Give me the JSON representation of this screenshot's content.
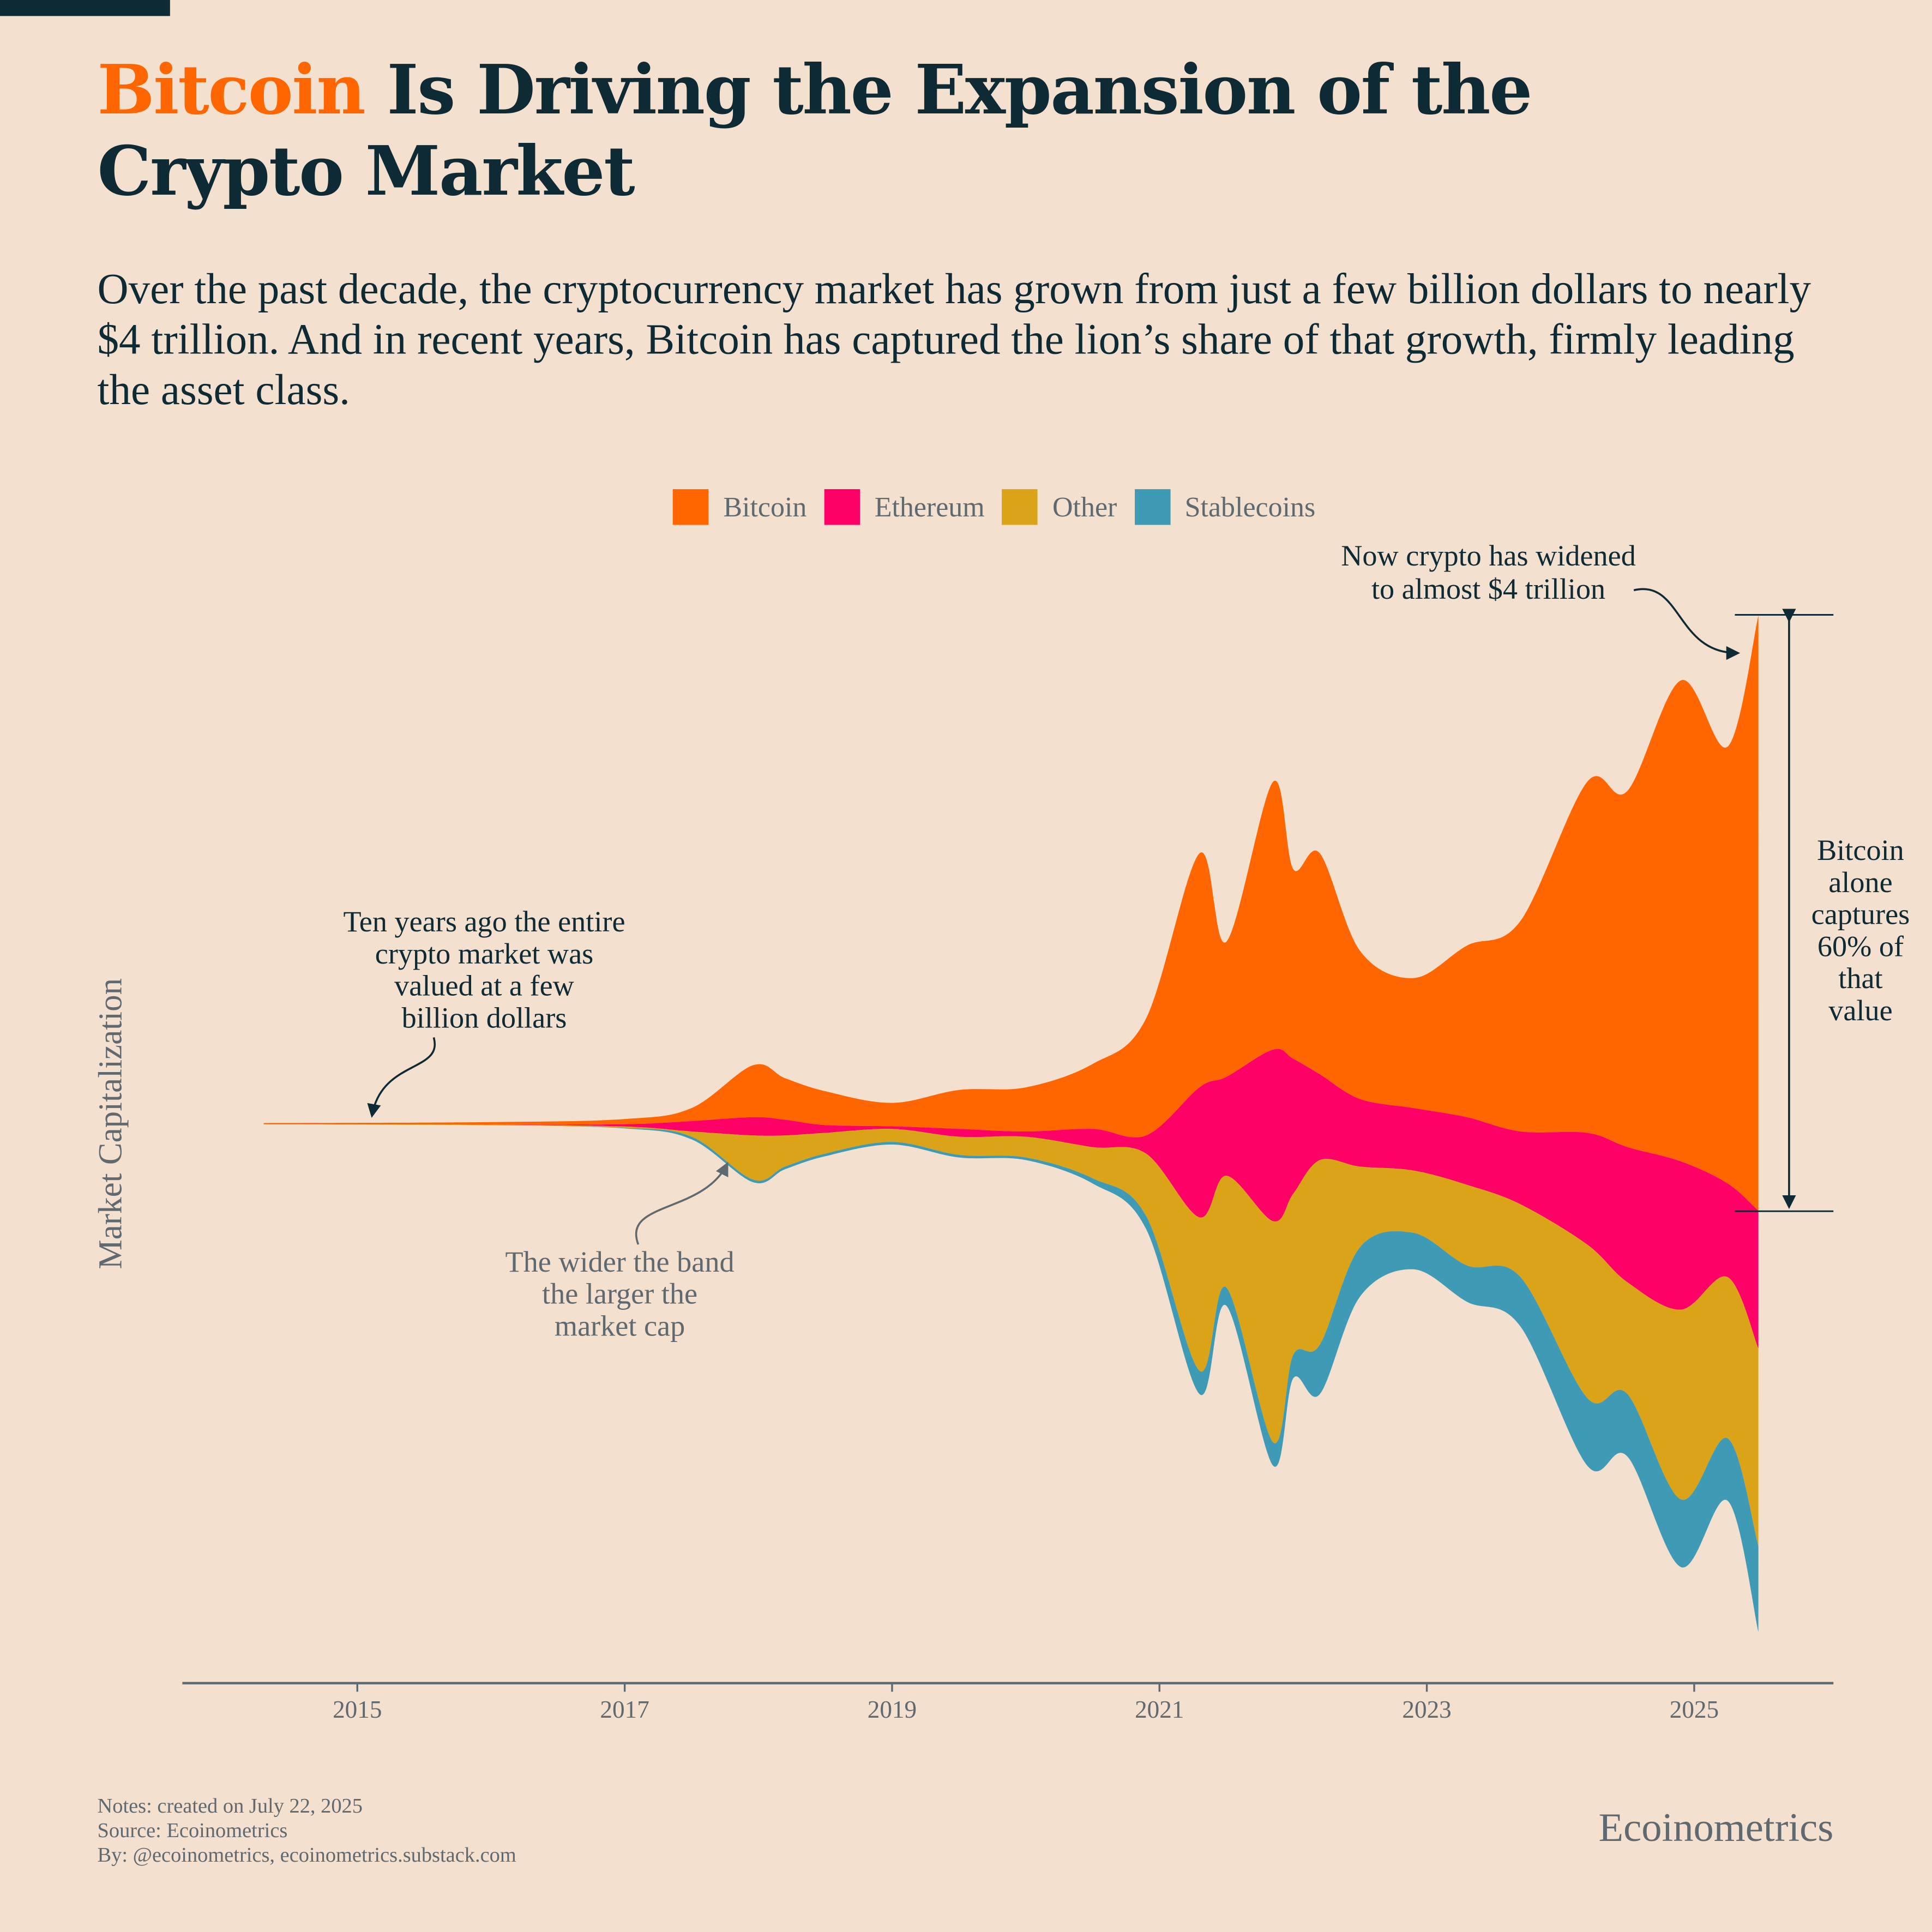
{
  "header": {
    "title_highlight": "Bitcoin",
    "title_rest": " Is Driving the Expansion of the Crypto Market",
    "subtitle": "Over the past decade, the cryptocurrency market has grown from just a few billion dollars to nearly $4 trillion. And in recent years, Bitcoin has captured the lion’s share of that growth, firmly leading the asset class."
  },
  "colors": {
    "bitcoin": "#ff6600",
    "ethereum": "#ff0066",
    "other": "#dba418",
    "stablecoins": "#3e9ab5",
    "ink": "#0d2a35",
    "muted": "#5e6a70",
    "background": "#f3e0cf"
  },
  "annotations": {
    "early": [
      "Ten years ago the entire",
      "crypto market was",
      "valued at a few",
      "billion dollars"
    ],
    "band": [
      "The wider the band",
      "the larger the",
      "market cap"
    ],
    "now": [
      "Now crypto has widened",
      "to almost $4 trillion"
    ],
    "bitcoin_share": [
      "Bitcoin",
      "alone",
      "captures",
      "60% of",
      "that",
      "value"
    ]
  },
  "footer": {
    "notes": "Notes: created on July 22, 2025",
    "source": "Source: Ecoinometrics",
    "by": "By: @ecoinometrics, ecoinometrics.substack.com",
    "brand": "Ecoinometrics"
  },
  "chart_data": {
    "type": "area",
    "subtype": "streamgraph (silhouette baseline)",
    "ylabel": "Market Capitalization",
    "xlabel": "",
    "units": "USD trillions (estimated)",
    "x_ticks": [
      "2015",
      "2017",
      "2019",
      "2021",
      "2023",
      "2025"
    ],
    "x_tick_values": [
      2015,
      2017,
      2019,
      2021,
      2023,
      2025
    ],
    "xlim": [
      2013.6,
      2026.05
    ],
    "legend_position": "top-center",
    "grid": false,
    "x": [
      2014.3,
      2016.0,
      2017.0,
      2017.5,
      2017.96,
      2018.2,
      2018.5,
      2019.0,
      2019.5,
      2020.0,
      2020.5,
      2020.9,
      2021.3,
      2021.5,
      2021.85,
      2022.0,
      2022.2,
      2022.5,
      2022.9,
      2023.3,
      2023.7,
      2024.2,
      2024.5,
      2024.9,
      2025.25,
      2025.48
    ],
    "series": [
      {
        "name": "Bitcoin",
        "values": [
          0.004,
          0.01,
          0.02,
          0.05,
          0.2,
          0.16,
          0.13,
          0.09,
          0.15,
          0.17,
          0.25,
          0.45,
          0.9,
          0.52,
          1.03,
          0.73,
          0.85,
          0.57,
          0.5,
          0.66,
          0.81,
          1.35,
          1.37,
          1.85,
          1.68,
          2.29
        ]
      },
      {
        "name": "Ethereum",
        "values": [
          0,
          0,
          0.009,
          0.04,
          0.07,
          0.06,
          0.03,
          0.01,
          0.03,
          0.02,
          0.07,
          0.07,
          0.5,
          0.38,
          0.66,
          0.52,
          0.33,
          0.26,
          0.24,
          0.26,
          0.28,
          0.43,
          0.52,
          0.57,
          0.36,
          0.53
        ]
      },
      {
        "name": "Other",
        "values": [
          0.001,
          0.002,
          0.005,
          0.02,
          0.17,
          0.12,
          0.08,
          0.05,
          0.07,
          0.08,
          0.12,
          0.24,
          0.59,
          0.43,
          0.85,
          0.62,
          0.71,
          0.31,
          0.24,
          0.31,
          0.28,
          0.59,
          0.43,
          0.73,
          0.62,
          0.76
        ]
      },
      {
        "name": "Stablecoins",
        "values": [
          0,
          0,
          0.002,
          0.01,
          0.01,
          0.01,
          0.01,
          0.01,
          0.01,
          0.01,
          0.02,
          0.05,
          0.09,
          0.07,
          0.09,
          0.09,
          0.19,
          0.19,
          0.14,
          0.14,
          0.19,
          0.26,
          0.24,
          0.26,
          0.24,
          0.33
        ]
      }
    ]
  }
}
